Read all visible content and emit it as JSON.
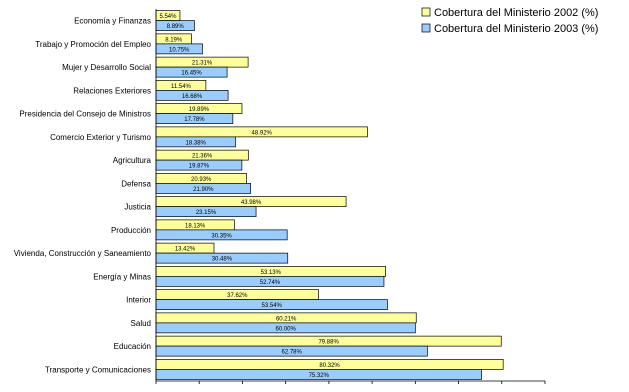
{
  "chart_data": {
    "type": "bar",
    "orientation": "horizontal",
    "categories": [
      "Economía y Finanzas",
      "Trabajo y Promoción del Empleo",
      "Mujer y Desarrollo Social",
      "Relaciones Exteriores",
      "Presidencia del Consejo de Ministros",
      "Comercio Exterior y Turismo",
      "Agricultura",
      "Defensa",
      "Justicia",
      "Producción",
      "Vivienda, Construcción y Saneamiento",
      "Energía y Minas",
      "Interior",
      "Salud",
      "Educación",
      "Transporte y Comunicaciones"
    ],
    "series": [
      {
        "name": "Cobertura del Ministerio 2002 (%)",
        "color": "#ffff99",
        "values": [
          5.54,
          8.19,
          21.31,
          11.54,
          19.89,
          48.92,
          21.36,
          20.93,
          43.98,
          18.13,
          13.42,
          53.13,
          37.62,
          60.21,
          79.88,
          80.32
        ],
        "labels": [
          "5.54%",
          "8.19%",
          "21.31%",
          "11.54%",
          "19.89%",
          "48.92%",
          "21.36%",
          "20.93%",
          "43.98%",
          "18.13%",
          "13.42%",
          "53.13%",
          "37.62%",
          "60.21%",
          "79.88%",
          "80.32%"
        ]
      },
      {
        "name": "Cobertura del Ministerio 2003 (%)",
        "color": "#99ccff",
        "values": [
          8.89,
          10.75,
          16.45,
          16.68,
          17.78,
          18.38,
          19.87,
          21.9,
          23.15,
          30.35,
          30.48,
          52.74,
          53.54,
          60.0,
          62.78,
          75.32
        ],
        "labels": [
          "8.89%",
          "10.75%",
          "16.45%",
          "16.68%",
          "17.78%",
          "18.38%",
          "19.87%",
          "21.90%",
          "23.15%",
          "30.35%",
          "30.48%",
          "52.74%",
          "53.54%",
          "60.00%",
          "62.78%",
          "75.32%"
        ]
      }
    ],
    "xlim": [
      0,
      90
    ],
    "legend": "top-right",
    "grid": false
  }
}
